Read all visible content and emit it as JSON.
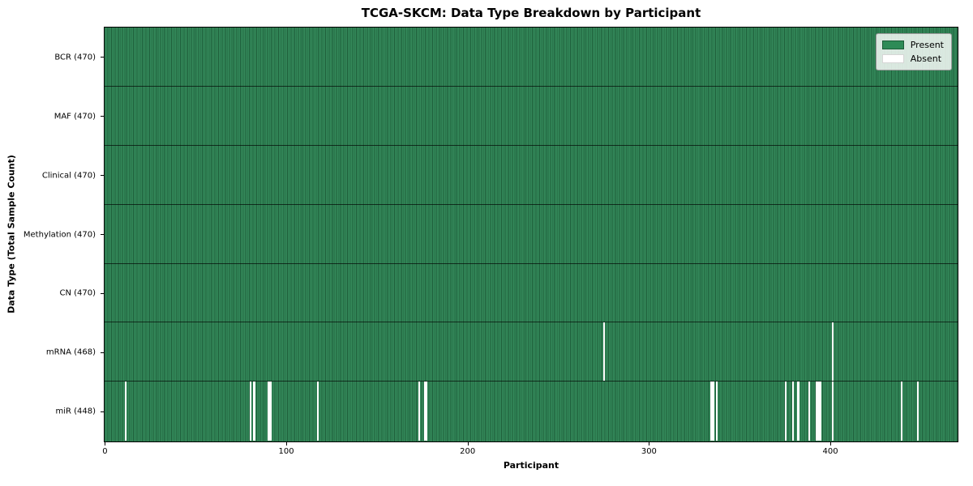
{
  "chart_data": {
    "type": "heatmap",
    "title": "TCGA-SKCM: Data Type Breakdown by Participant",
    "xlabel": "Participant",
    "ylabel": "Data Type (Total Sample Count)",
    "x_range": [
      0,
      470
    ],
    "n_participants": 470,
    "x_ticks": [
      0,
      100,
      200,
      300,
      400
    ],
    "grid": "row-separators",
    "legend_position": "upper-right-inside",
    "legend": [
      {
        "label": "Present",
        "color": "#2e8b57"
      },
      {
        "label": "Absent",
        "color": "#ffffff"
      }
    ],
    "colors": {
      "present": "#2e8b57",
      "present_edge": "#1e5e3a",
      "absent": "#ffffff"
    },
    "rows": [
      {
        "label": "BCR (470)",
        "total": 470,
        "absent": []
      },
      {
        "label": "MAF (470)",
        "total": 470,
        "absent": []
      },
      {
        "label": "Clinical (470)",
        "total": 470,
        "absent": []
      },
      {
        "label": "Methylation (470)",
        "total": 470,
        "absent": []
      },
      {
        "label": "CN (470)",
        "total": 470,
        "absent": []
      },
      {
        "label": "mRNA (468)",
        "total": 468,
        "absent": [
          275,
          401
        ]
      },
      {
        "label": "miR (448)",
        "total": 448,
        "absent": [
          11,
          80,
          82,
          90,
          91,
          117,
          173,
          176,
          177,
          334,
          335,
          337,
          375,
          379,
          382,
          388,
          392,
          393,
          394,
          401,
          439,
          448
        ]
      }
    ]
  }
}
